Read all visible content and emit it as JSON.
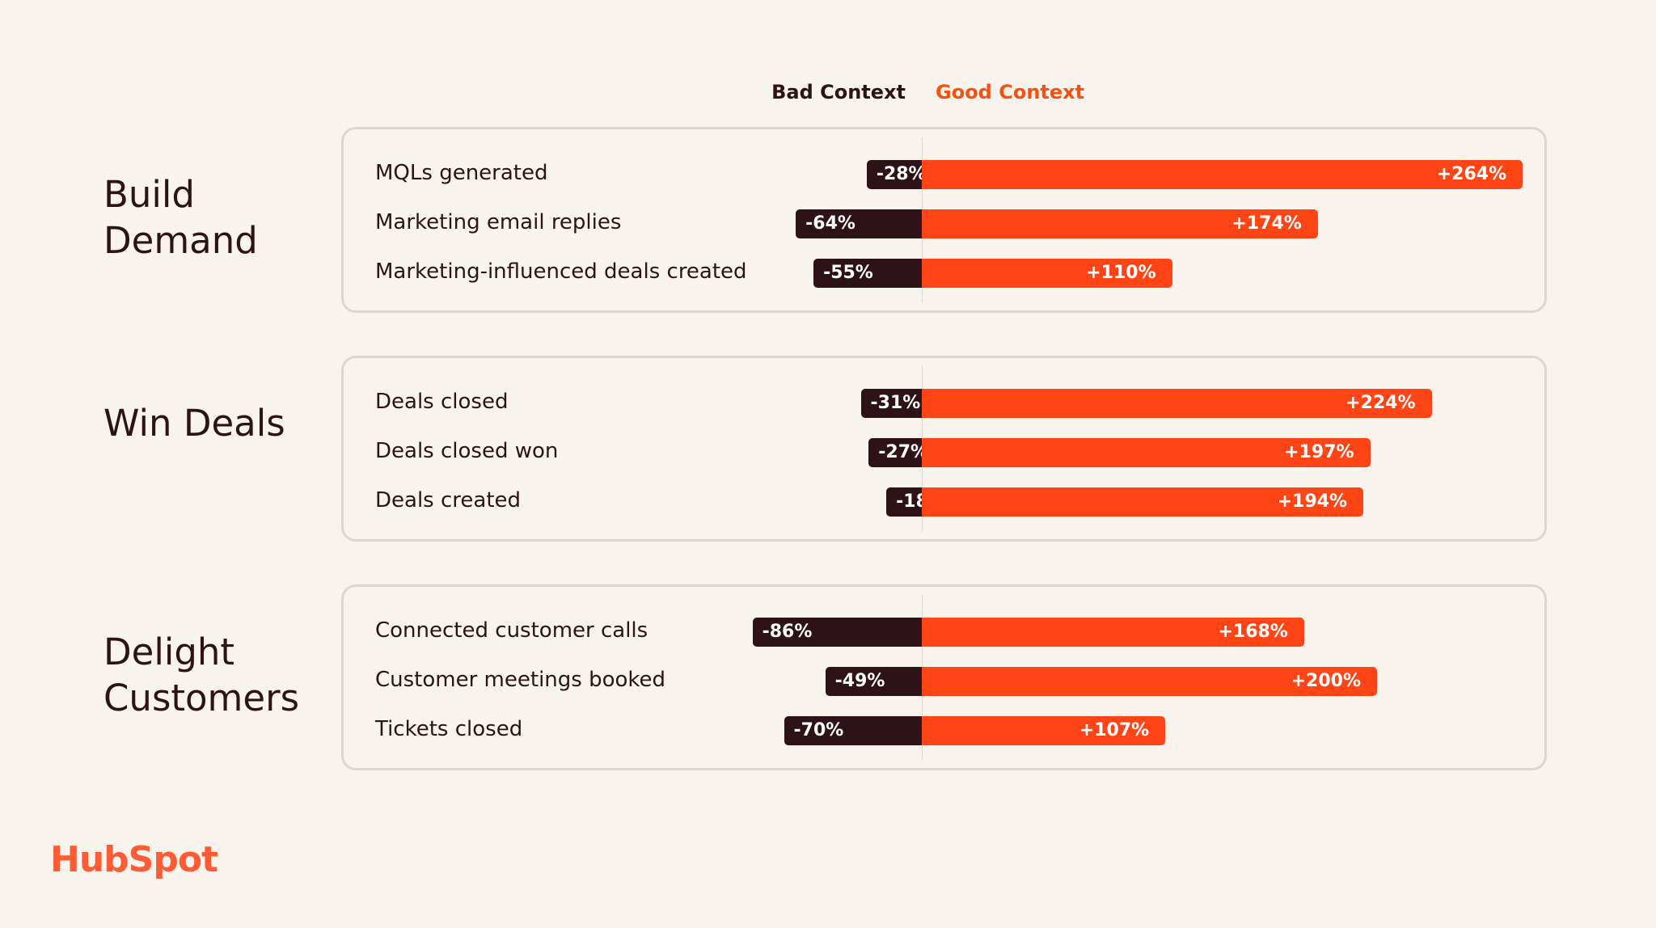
{
  "legend": {
    "bad": "Bad Context",
    "good": "Good Context"
  },
  "colors": {
    "bad": "#2d1217",
    "good": "#ff4516",
    "background": "#f8f3ec"
  },
  "brand": {
    "logo_text": "HubSpot"
  },
  "chart_data": {
    "type": "bar",
    "groups": [
      {
        "title": "Build Demand",
        "rows": [
          {
            "label": "MQLs generated",
            "bad": -28,
            "good": 264,
            "bad_label": "-28%",
            "good_label": "+264%"
          },
          {
            "label": "Marketing email replies",
            "bad": -64,
            "good": 174,
            "bad_label": "-64%",
            "good_label": "+174%"
          },
          {
            "label": "Marketing-influenced deals created",
            "bad": -55,
            "good": 110,
            "bad_label": "-55%",
            "good_label": "+110%"
          }
        ]
      },
      {
        "title": "Win Deals",
        "rows": [
          {
            "label": "Deals closed",
            "bad": -31,
            "good": 224,
            "bad_label": "-31%",
            "good_label": "+224%"
          },
          {
            "label": "Deals closed won",
            "bad": -27,
            "good": 197,
            "bad_label": "-27%",
            "good_label": "+197%"
          },
          {
            "label": "Deals created",
            "bad": -18,
            "good": 194,
            "bad_label": "-18%",
            "good_label": "+194%"
          }
        ]
      },
      {
        "title": "Delight Customers",
        "rows": [
          {
            "label": "Connected customer calls",
            "bad": -86,
            "good": 168,
            "bad_label": "-86%",
            "good_label": "+168%"
          },
          {
            "label": "Customer meetings booked",
            "bad": -49,
            "good": 200,
            "bad_label": "-49%",
            "good_label": "+200%"
          },
          {
            "label": "Tickets closed",
            "bad": -70,
            "good": 107,
            "bad_label": "-70%",
            "good_label": "+107%"
          }
        ]
      }
    ]
  }
}
